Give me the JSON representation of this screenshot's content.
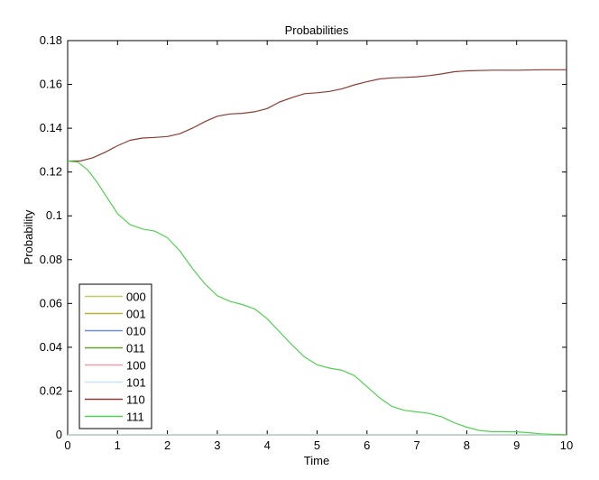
{
  "chart_data": {
    "type": "line",
    "title": "Probabilities",
    "xlabel": "Time",
    "ylabel": "Probability",
    "xlim": [
      0,
      10
    ],
    "ylim": [
      0,
      0.18
    ],
    "xticks": [
      "0",
      "1",
      "2",
      "3",
      "4",
      "5",
      "6",
      "7",
      "8",
      "9",
      "10"
    ],
    "yticks": [
      "0",
      "0.02",
      "0.04",
      "0.06",
      "0.08",
      "0.1",
      "0.12",
      "0.14",
      "0.16",
      "0.18"
    ],
    "grid": false,
    "legend_position": "bottom-left",
    "series": [
      {
        "name": "000",
        "color": "#c8c864",
        "x": [
          0,
          10
        ],
        "y": [
          0,
          0
        ]
      },
      {
        "name": "001",
        "color": "#b4b432",
        "x": [
          0,
          10
        ],
        "y": [
          0,
          0
        ]
      },
      {
        "name": "010",
        "color": "#6e8cdc",
        "x": [
          0,
          10
        ],
        "y": [
          0,
          0
        ]
      },
      {
        "name": "011",
        "color": "#64a032",
        "x": [
          0,
          10
        ],
        "y": [
          0,
          0
        ]
      },
      {
        "name": "100",
        "color": "#e6a0aa",
        "x": [
          0,
          10
        ],
        "y": [
          0,
          0
        ]
      },
      {
        "name": "101",
        "color": "#c8e6f0",
        "x": [
          0,
          10
        ],
        "y": [
          0,
          0
        ]
      },
      {
        "name": "110",
        "color": "#8c3c32",
        "x": [
          0,
          0.25,
          0.5,
          0.75,
          1,
          1.25,
          1.5,
          1.75,
          2,
          2.25,
          2.5,
          2.75,
          3,
          3.25,
          3.5,
          3.75,
          4,
          4.25,
          4.5,
          4.75,
          5,
          5.25,
          5.5,
          5.75,
          6,
          6.25,
          6.5,
          6.75,
          7,
          7.25,
          7.5,
          7.75,
          8,
          8.5,
          9,
          9.5,
          10
        ],
        "y": [
          0.125,
          0.125,
          0.1265,
          0.129,
          0.132,
          0.1345,
          0.1355,
          0.1358,
          0.1362,
          0.1375,
          0.14,
          0.143,
          0.1455,
          0.1465,
          0.1468,
          0.1475,
          0.149,
          0.152,
          0.154,
          0.1558,
          0.1562,
          0.1568,
          0.158,
          0.1598,
          0.1612,
          0.1625,
          0.163,
          0.1632,
          0.1635,
          0.164,
          0.1648,
          0.1658,
          0.1662,
          0.1665,
          0.1665,
          0.1667,
          0.1667
        ]
      },
      {
        "name": "111",
        "color": "#50d250",
        "x": [
          0,
          0.2,
          0.4,
          0.6,
          0.8,
          1,
          1.25,
          1.5,
          1.75,
          2,
          2.25,
          2.5,
          2.75,
          3,
          3.25,
          3.5,
          3.75,
          4,
          4.25,
          4.5,
          4.75,
          5,
          5.25,
          5.5,
          5.75,
          6,
          6.25,
          6.5,
          6.75,
          7,
          7.25,
          7.5,
          7.75,
          8,
          8.25,
          8.5,
          8.75,
          9,
          9.25,
          9.5,
          9.75,
          10
        ],
        "y": [
          0.125,
          0.1245,
          0.121,
          0.115,
          0.108,
          0.101,
          0.096,
          0.094,
          0.093,
          0.09,
          0.084,
          0.076,
          0.069,
          0.0635,
          0.061,
          0.0595,
          0.0575,
          0.053,
          0.047,
          0.041,
          0.0355,
          0.032,
          0.0305,
          0.0295,
          0.027,
          0.022,
          0.017,
          0.013,
          0.0112,
          0.0105,
          0.0098,
          0.0082,
          0.0055,
          0.0035,
          0.002,
          0.0015,
          0.0015,
          0.0014,
          0.001,
          0.0005,
          0.0002,
          0.0001
        ]
      }
    ]
  }
}
